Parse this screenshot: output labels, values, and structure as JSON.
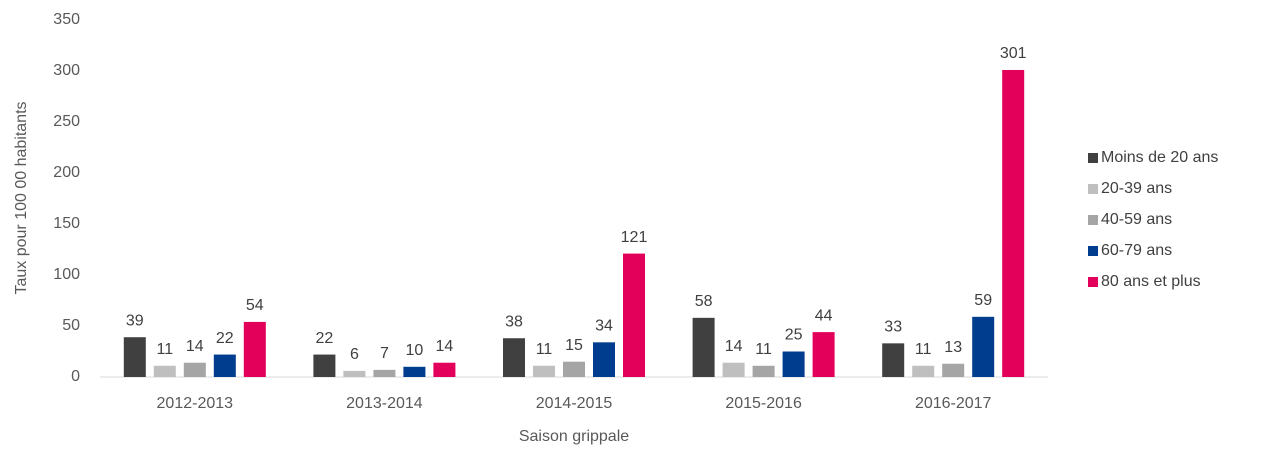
{
  "chart_data": {
    "type": "bar",
    "y_label": "Taux pour 100 00 habitants",
    "x_label": "Saison grippale",
    "categories": [
      "2012-2013",
      "2013-2014",
      "2014-2015",
      "2015-2016",
      "2016-2017"
    ],
    "series": [
      {
        "name": "Moins de 20 ans",
        "color": "#404040",
        "values": [
          39,
          22,
          38,
          58,
          33
        ]
      },
      {
        "name": "20-39 ans",
        "color": "#bfbfbf",
        "values": [
          11,
          6,
          11,
          14,
          11
        ]
      },
      {
        "name": "40-59 ans",
        "color": "#a5a5a5",
        "values": [
          14,
          7,
          15,
          11,
          13
        ]
      },
      {
        "name": "60-79 ans",
        "color": "#003d8f",
        "values": [
          22,
          10,
          34,
          25,
          59
        ]
      },
      {
        "name": "80 ans et plus",
        "color": "#e2005a",
        "values": [
          54,
          14,
          121,
          44,
          301
        ]
      }
    ],
    "ylim": [
      0,
      350
    ],
    "yticks": [
      0,
      50,
      100,
      150,
      200,
      250,
      300,
      350
    ],
    "grid": false,
    "legend": "right"
  }
}
